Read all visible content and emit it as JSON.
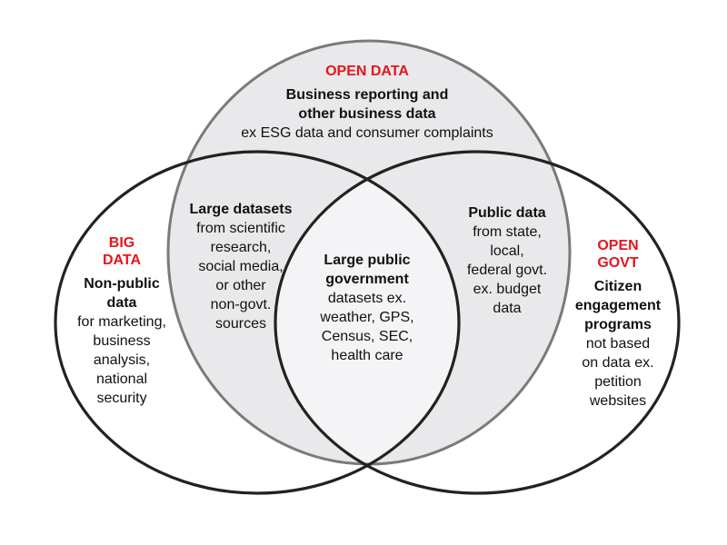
{
  "colors": {
    "accent": "#e8141b",
    "top_circle_fill": "#e9e9eb",
    "center_fill": "#f4f4f6",
    "top_circle_stroke": "#7a7a7a",
    "side_circle_stroke": "#222222"
  },
  "open_data": {
    "title": "OPEN DATA",
    "heading": [
      "Business reporting and",
      "other business data"
    ],
    "body": [
      "ex ESG data and consumer complaints"
    ]
  },
  "big_data": {
    "title": [
      "BIG",
      "DATA"
    ],
    "heading": [
      "Non-public",
      "data"
    ],
    "body": [
      "for marketing,",
      "business",
      "analysis,",
      "national",
      "security"
    ]
  },
  "open_govt": {
    "title": [
      "OPEN",
      "GOVT"
    ],
    "heading": [
      "Citizen",
      "engagement",
      "programs"
    ],
    "body": [
      "not based",
      "on data ex.",
      "petition",
      "websites"
    ]
  },
  "big_open_overlap": {
    "heading": [
      "Large datasets"
    ],
    "body": [
      "from scientific",
      "research,",
      "social media,",
      "or other",
      "non-govt.",
      "sources"
    ]
  },
  "open_govt_overlap": {
    "heading": [
      "Public data"
    ],
    "body": [
      "from state,",
      "local,",
      "federal govt.",
      "ex. budget",
      "data"
    ]
  },
  "center": {
    "heading": [
      "Large public",
      "government"
    ],
    "body": [
      "datasets ex.",
      "weather, GPS,",
      "Census, SEC,",
      "health care"
    ]
  }
}
